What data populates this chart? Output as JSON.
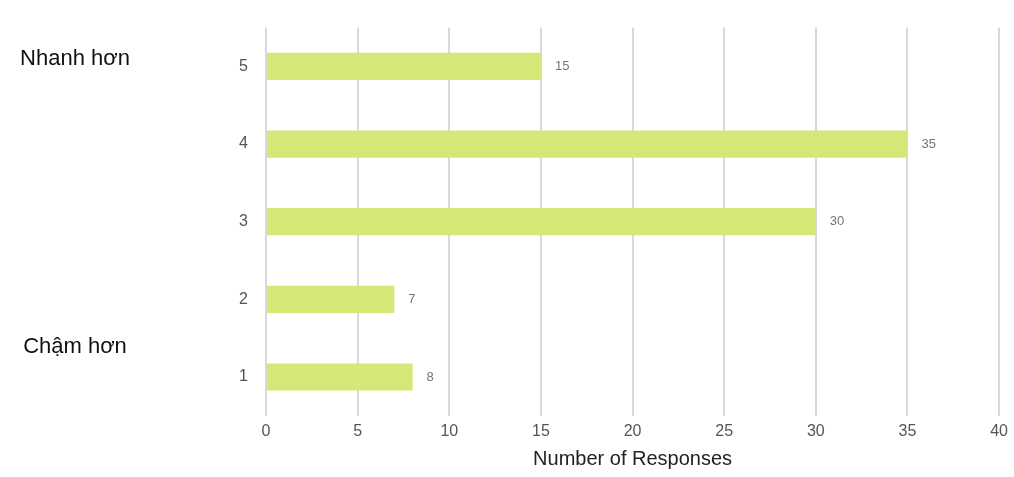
{
  "chart_data": {
    "type": "bar",
    "orientation": "horizontal",
    "xlabel": "Number of Responses",
    "categories": [
      "5",
      "4",
      "3",
      "2",
      "1"
    ],
    "values": [
      15,
      35,
      30,
      7,
      8
    ],
    "color": "#d5e877",
    "xlim": [
      0,
      40
    ],
    "xticks": [
      0,
      5,
      10,
      15,
      20,
      25,
      30,
      35,
      40
    ],
    "grid": "x",
    "data_labels": true,
    "legend": false,
    "annotations": [
      "Nhanh hơn",
      "Chậm hơn"
    ]
  }
}
